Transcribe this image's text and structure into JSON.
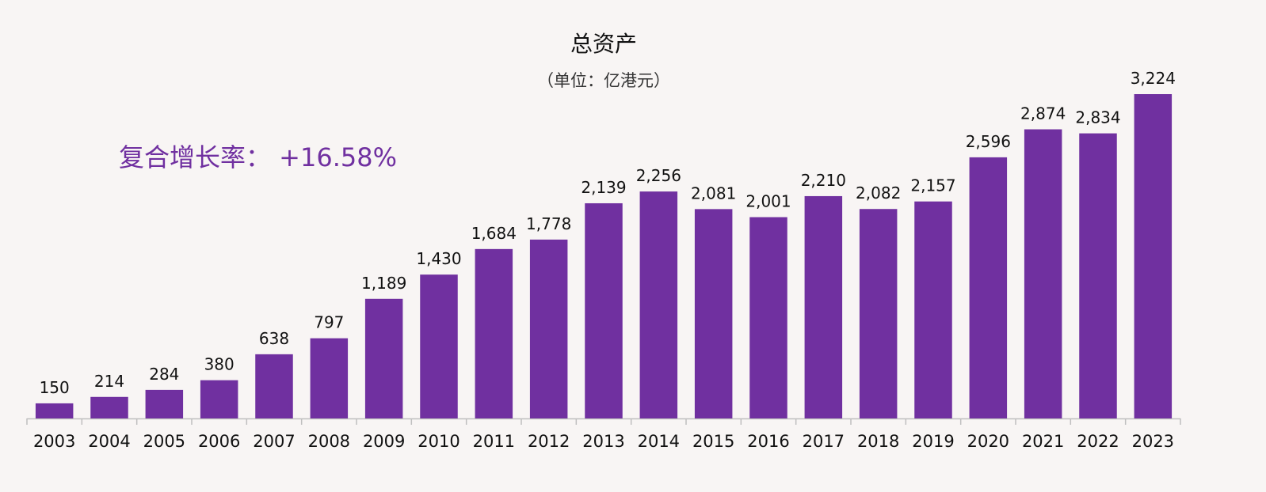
{
  "chart_data": {
    "type": "bar",
    "title": "总资产",
    "subtitle": "（单位：亿港元）",
    "annotation": "复合增长率： +16.58%",
    "xlabel": "",
    "ylabel": "",
    "ylim": [
      0,
      3300
    ],
    "grid": false,
    "legend": "none",
    "categories": [
      "2003",
      "2004",
      "2005",
      "2006",
      "2007",
      "2008",
      "2009",
      "2010",
      "2011",
      "2012",
      "2013",
      "2014",
      "2015",
      "2016",
      "2017",
      "2018",
      "2019",
      "2020",
      "2021",
      "2022",
      "2023"
    ],
    "values": [
      150,
      214,
      284,
      380,
      638,
      797,
      1189,
      1430,
      1684,
      1778,
      2139,
      2256,
      2081,
      2001,
      2210,
      2082,
      2157,
      2596,
      2874,
      2834,
      3224
    ],
    "value_labels": [
      "150",
      "214",
      "284",
      "380",
      "638",
      "797",
      "1,189",
      "1,430",
      "1,684",
      "1,778",
      "2,139",
      "2,256",
      "2,081",
      "2,001",
      "2,210",
      "2,082",
      "2,157",
      "2,596",
      "2,874",
      "2,834",
      "3,224"
    ],
    "colors": {
      "bar": "#7030a0",
      "annotation": "#7030a0",
      "axis": "#bfbfbf",
      "text": "#111111"
    }
  }
}
